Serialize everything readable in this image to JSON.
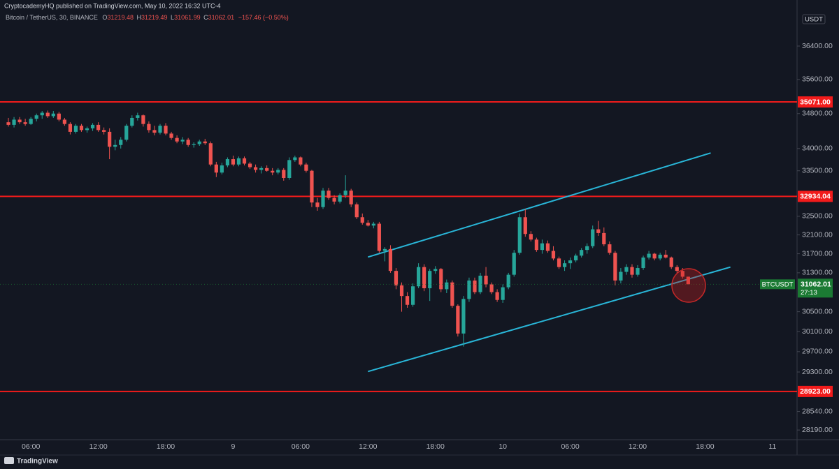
{
  "header": {
    "publisher": "CryptocademyHQ published on TradingView.com, May 10, 2022 16:32 UTC-4",
    "symbol": "Bitcoin / TetherUS, 30, BINANCE",
    "ohlc_letters": [
      "O",
      "H",
      "L",
      "C"
    ],
    "change": "−157.46 (−0.50%)"
  },
  "brand": "TradingView",
  "chart_data": {
    "type": "candlestick",
    "log_scale": true,
    "grid": false,
    "currency": "USDT",
    "symbol_tag": "BTCUSDT",
    "countdown": "27:13",
    "up_color": "#26a69a",
    "down_color": "#ef5350",
    "ylim": [
      28009,
      37221
    ],
    "yticks": [
      {
        "value": 36400,
        "label": "36400.00"
      },
      {
        "value": 35600,
        "label": "35600.00"
      },
      {
        "value": 34800,
        "label": "34800.00"
      },
      {
        "value": 34000,
        "label": "34000.00"
      },
      {
        "value": 33500,
        "label": "33500.00"
      },
      {
        "value": 32500,
        "label": "32500.00"
      },
      {
        "value": 32100,
        "label": "32100.00"
      },
      {
        "value": 31700,
        "label": "31700.00"
      },
      {
        "value": 31300,
        "label": "31300.00"
      },
      {
        "value": 30500,
        "label": "30500.00"
      },
      {
        "value": 30100,
        "label": "30100.00"
      },
      {
        "value": 29700,
        "label": "29700.00"
      },
      {
        "value": 29300,
        "label": "29300.00"
      },
      {
        "value": 28540,
        "label": "28540.00"
      },
      {
        "value": 28190,
        "label": "28190.00"
      }
    ],
    "hlines": [
      {
        "value": 35071,
        "label": "35071.00"
      },
      {
        "value": 32934.04,
        "label": "32934.04"
      },
      {
        "value": 28923,
        "label": "28923.00"
      }
    ],
    "hline_color": "#f21b1b",
    "trendlines": [
      {
        "color": "#29b6d8",
        "x": [
          64,
          125
        ],
        "values": [
          31630,
          33900
        ]
      },
      {
        "color": "#29b6d8",
        "x": [
          64,
          128.5
        ],
        "values": [
          29310,
          31420
        ]
      }
    ],
    "categories": [
      null,
      null,
      null,
      null,
      "06:00",
      null,
      null,
      null,
      null,
      null,
      null,
      null,
      null,
      null,
      null,
      null,
      "12:00",
      null,
      null,
      null,
      null,
      null,
      null,
      null,
      null,
      null,
      null,
      null,
      "18:00",
      null,
      null,
      null,
      null,
      null,
      null,
      null,
      null,
      null,
      null,
      null,
      "9",
      null,
      null,
      null,
      null,
      null,
      null,
      null,
      null,
      null,
      null,
      null,
      "06:00",
      null,
      null,
      null,
      null,
      null,
      null,
      null,
      null,
      null,
      null,
      null,
      "12:00",
      null,
      null,
      null,
      null,
      null,
      null,
      null,
      null,
      null,
      null,
      null,
      "18:00",
      null,
      null,
      null,
      null,
      null,
      null,
      null,
      null,
      null,
      null,
      null,
      "10",
      null,
      null,
      null,
      null,
      null,
      null,
      null,
      null,
      null,
      null,
      null,
      "06:00",
      null,
      null,
      null,
      null,
      null,
      null,
      null,
      null,
      null,
      null,
      null,
      "12:00",
      null,
      null,
      null,
      null,
      null,
      null,
      null,
      null,
      null,
      null,
      null,
      "18:00",
      null,
      null,
      null,
      null,
      null,
      null,
      null,
      null,
      null,
      null,
      null,
      "11",
      null,
      null,
      null
    ],
    "open": [
      34600,
      34540,
      34660,
      34600,
      34560,
      34680,
      34760,
      34820,
      34740,
      34800,
      34660,
      34560,
      34380,
      34520,
      34420,
      34460,
      34540,
      34420,
      34380,
      34040,
      34080,
      34200,
      34520,
      34700,
      34760,
      34560,
      34420,
      34360,
      34520,
      34340,
      34240,
      34160,
      34200,
      34080,
      34100,
      34160,
      34120,
      33640,
      33460,
      33620,
      33760,
      33640,
      33780,
      33660,
      33580,
      33520,
      33560,
      33500,
      33460,
      33520,
      33340,
      33740,
      33800,
      33640,
      33500,
      32800,
      32700,
      33060,
      32900,
      32820,
      32960,
      33060,
      32760,
      32480,
      32360,
      32300,
      32340,
      31760,
      31800,
      31340,
      31040,
      30820,
      30640,
      31020,
      31420,
      30980,
      31340,
      31380,
      30960,
      31100,
      30620,
      30060,
      30760,
      31140,
      30900,
      31240,
      31060,
      30900,
      30740,
      31000,
      31260,
      31720,
      32480,
      32120,
      32000,
      31780,
      31920,
      31760,
      31600,
      31420,
      31500,
      31560,
      31660,
      31780,
      31860,
      32220,
      32140,
      31900,
      31720,
      31140,
      31320,
      31420,
      31260,
      31400,
      31620,
      31700,
      31600,
      31680,
      31620,
      31420,
      31340,
      31219.48,
      null,
      null,
      null,
      null,
      null,
      null,
      null,
      null,
      null,
      null,
      null,
      null,
      null,
      null,
      null,
      null,
      null,
      null
    ],
    "high": [
      34700,
      34720,
      34720,
      34680,
      34720,
      34800,
      34860,
      34870,
      34860,
      34840,
      34700,
      34600,
      34560,
      34560,
      34500,
      34580,
      34600,
      34480,
      34460,
      34200,
      34260,
      34560,
      34760,
      34820,
      34780,
      34620,
      34520,
      34560,
      34580,
      34380,
      34300,
      34260,
      34240,
      34140,
      34200,
      34220,
      34160,
      33700,
      33680,
      33800,
      33840,
      33820,
      33820,
      33700,
      33640,
      33600,
      33620,
      33560,
      33560,
      33560,
      33800,
      33840,
      33820,
      33680,
      33520,
      32900,
      33120,
      33120,
      32960,
      33000,
      33400,
      33100,
      32800,
      32560,
      32420,
      32380,
      32380,
      31840,
      31880,
      31400,
      31100,
      30900,
      31080,
      31500,
      31480,
      31380,
      31440,
      31400,
      31160,
      31140,
      30650,
      30820,
      31200,
      31200,
      31300,
      31420,
      31100,
      30960,
      31060,
      31300,
      31780,
      32560,
      32660,
      32180,
      32040,
      32000,
      31980,
      31860,
      31640,
      31560,
      31620,
      31700,
      31820,
      31920,
      32300,
      32400,
      32260,
      31960,
      31760,
      31400,
      31480,
      31480,
      31460,
      31660,
      31760,
      31720,
      31720,
      31780,
      31640,
      31460,
      31400,
      31219.49,
      null,
      null,
      null,
      null,
      null,
      null,
      null,
      null,
      null,
      null,
      null,
      null,
      null,
      null,
      null,
      null,
      null,
      null
    ],
    "low": [
      34500,
      34480,
      34560,
      34520,
      34540,
      34620,
      34680,
      34700,
      34700,
      34620,
      34520,
      34320,
      34340,
      34380,
      34360,
      34400,
      34380,
      34320,
      33760,
      33960,
      34000,
      34160,
      34480,
      34640,
      34500,
      34360,
      34300,
      34320,
      34300,
      34200,
      34120,
      34100,
      34040,
      34020,
      34060,
      34080,
      33600,
      33360,
      33420,
      33580,
      33600,
      33600,
      33620,
      33540,
      33460,
      33440,
      33480,
      33400,
      33420,
      33280,
      33300,
      33700,
      33600,
      33460,
      32700,
      32620,
      32660,
      32860,
      32760,
      32780,
      32900,
      32700,
      32440,
      32320,
      32280,
      32240,
      31720,
      31540,
      31300,
      30960,
      30500,
      30580,
      30600,
      30980,
      30920,
      30720,
      31280,
      30900,
      30880,
      30580,
      30000,
      29800,
      30700,
      30860,
      30860,
      31000,
      30860,
      30700,
      30680,
      30960,
      31220,
      31680,
      32060,
      31960,
      31740,
      31700,
      31720,
      31560,
      31380,
      31340,
      31380,
      31520,
      31620,
      31700,
      31820,
      32080,
      31860,
      31680,
      31040,
      31080,
      31260,
      31200,
      31220,
      31360,
      31580,
      31560,
      31560,
      31600,
      31380,
      31300,
      31180,
      31061.99,
      null,
      null,
      null,
      null,
      null,
      null,
      null,
      null,
      null,
      null,
      null,
      null,
      null,
      null,
      null,
      null,
      null,
      null
    ],
    "close": [
      34540,
      34660,
      34600,
      34560,
      34680,
      34760,
      34820,
      34740,
      34800,
      34660,
      34560,
      34380,
      34520,
      34420,
      34460,
      34540,
      34420,
      34380,
      34040,
      34080,
      34200,
      34520,
      34700,
      34760,
      34560,
      34420,
      34360,
      34520,
      34340,
      34240,
      34160,
      34200,
      34080,
      34100,
      34160,
      34120,
      33640,
      33460,
      33620,
      33760,
      33640,
      33780,
      33660,
      33580,
      33520,
      33560,
      33500,
      33460,
      33520,
      33340,
      33740,
      33800,
      33640,
      33500,
      32800,
      32700,
      33060,
      32900,
      32820,
      32960,
      33060,
      32760,
      32480,
      32360,
      32300,
      32340,
      31760,
      31800,
      31340,
      31040,
      30820,
      30640,
      31020,
      31420,
      30980,
      31340,
      31380,
      30960,
      31100,
      30620,
      30060,
      30760,
      31140,
      30900,
      31240,
      31060,
      30900,
      30740,
      31000,
      31260,
      31720,
      32480,
      32120,
      32000,
      31780,
      31920,
      31760,
      31600,
      31420,
      31500,
      31560,
      31660,
      31780,
      31860,
      32220,
      32140,
      31900,
      31720,
      31140,
      31320,
      31420,
      31260,
      31400,
      31620,
      31700,
      31600,
      31680,
      31620,
      31420,
      31340,
      31219.48,
      31062.01,
      null,
      null,
      null,
      null,
      null,
      null,
      null,
      null,
      null,
      null,
      null,
      null,
      null,
      null,
      null,
      null,
      null,
      null
    ]
  }
}
